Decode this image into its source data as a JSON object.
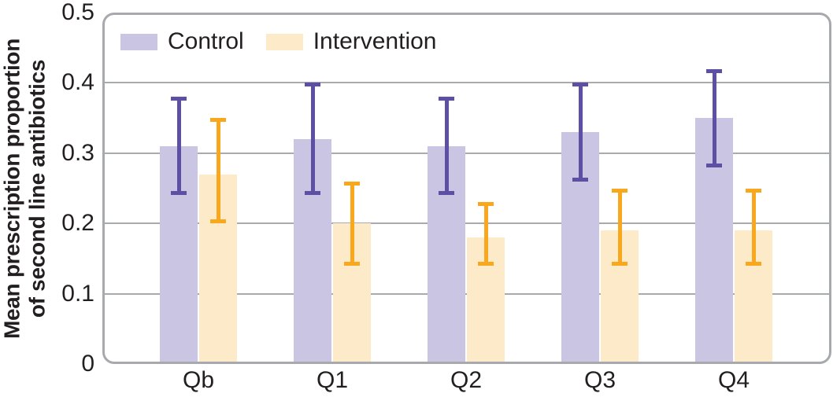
{
  "chart_data": {
    "type": "bar",
    "title": "",
    "xlabel": "",
    "ylabel": "Mean prescription proportion of second line antibiotics",
    "ylabel_lines": [
      "Mean prescription proportion",
      "of second line antibiotics"
    ],
    "categories": [
      "Qb",
      "Q1",
      "Q2",
      "Q3",
      "Q4"
    ],
    "ylim": [
      0,
      0.5
    ],
    "yticks": [
      0,
      0.1,
      0.2,
      0.3,
      0.4,
      0.5
    ],
    "ytick_labels": [
      "0",
      "0.1",
      "0.2",
      "0.3",
      "0.4",
      "0.5"
    ],
    "grid": true,
    "legend_position": "top-left-inside",
    "series": [
      {
        "name": "Control",
        "values": [
          0.31,
          0.32,
          0.31,
          0.33,
          0.35
        ],
        "error_low": [
          0.24,
          0.24,
          0.24,
          0.26,
          0.28
        ],
        "error_high": [
          0.38,
          0.4,
          0.38,
          0.4,
          0.42
        ],
        "bar_color": "#cac5e2",
        "error_color": "#5d4fa4"
      },
      {
        "name": "Intervention",
        "values": [
          0.27,
          0.2,
          0.18,
          0.19,
          0.19
        ],
        "error_low": [
          0.2,
          0.14,
          0.14,
          0.14,
          0.14
        ],
        "error_high": [
          0.35,
          0.26,
          0.23,
          0.25,
          0.25
        ],
        "bar_color": "#fdeac8",
        "error_color": "#f9a81d"
      }
    ],
    "colors": {
      "frame": "#a7a9ac",
      "grid": "#a8aaad",
      "text": "#231f20",
      "background": "#ffffff"
    }
  }
}
